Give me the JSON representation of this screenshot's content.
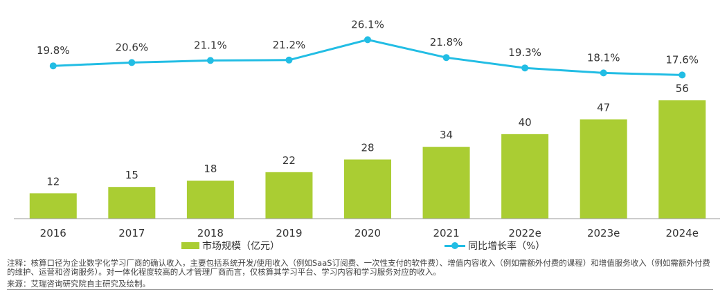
{
  "chart_data": {
    "type": "bar+line",
    "categories": [
      "2016",
      "2017",
      "2018",
      "2019",
      "2020",
      "2021",
      "2022e",
      "2023e",
      "2024e"
    ],
    "series": [
      {
        "name": "市场规模（亿元）",
        "type": "bar",
        "values": [
          12,
          15,
          18,
          22,
          28,
          34,
          40,
          47,
          56
        ],
        "color": "#aacd33"
      },
      {
        "name": "同比增长率（%）",
        "type": "line",
        "values": [
          19.8,
          20.6,
          21.1,
          21.2,
          26.1,
          21.8,
          19.3,
          18.1,
          17.6
        ],
        "labels": [
          "19.8%",
          "20.6%",
          "21.1%",
          "21.2%",
          "26.1%",
          "21.8%",
          "19.3%",
          "18.1%",
          "17.6%"
        ],
        "color": "#22bde4"
      }
    ],
    "bar_ylim": [
      0,
      60
    ],
    "line_ylim": [
      0,
      30
    ],
    "legend": {
      "bar_label": "市场规模（亿元）",
      "line_label": "同比增长率（%）"
    }
  },
  "note": "注释：核算口径为企业数字化学习厂商的确认收入，主要包括系统开发/使用收入（例如SaaS订阅费、一次性支付的软件费）、增值内容收入（例如需额外付费的课程）和增值服务收入（例如需额外付费的维护、运营和咨询服务）。对一体化程度较高的人才管理厂商而言，仅核算其学习平台、学习内容和学习服务对应的收入。",
  "source": "来源：艾瑞咨询研究院自主研究及绘制。"
}
